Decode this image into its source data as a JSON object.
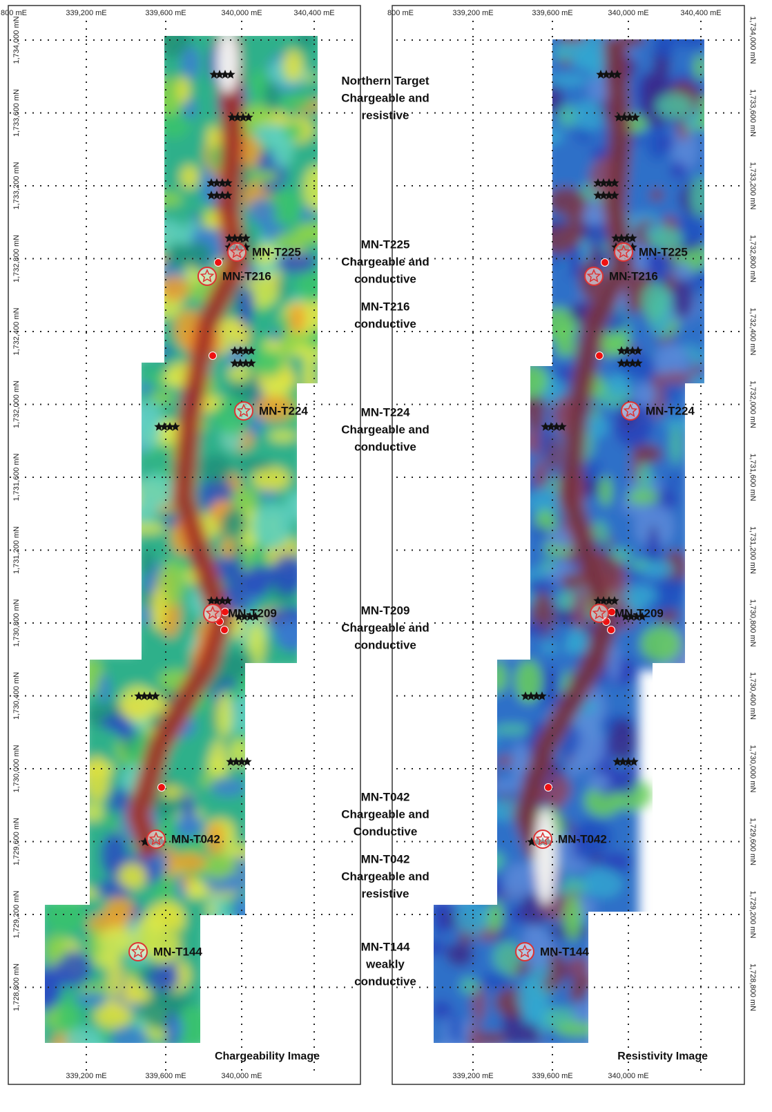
{
  "panels": [
    {
      "title": "Chargeability Image",
      "eastings_top": [
        "800 mE",
        "339,200 mE",
        "339,600 mE",
        "340,000 mE",
        "340,400 mE"
      ],
      "eastings_bottom": [
        "339,200 mE",
        "339,600 mE",
        "340,000 mE"
      ],
      "northings": [
        "1,734,000 mN",
        "1,733,600 mN",
        "1,733,200 mN",
        "1,732,800 mN",
        "1,732,400 mN",
        "1,732,000 mN",
        "1,731,600 mN",
        "1,731,200 mN",
        "1,730,800 mN",
        "1,730,400 mN",
        "1,730,000 mN",
        "1,729,600 mN",
        "1,729,200 mN",
        "1,728,800 mN"
      ],
      "targets": [
        "MN-T225",
        "MN-T216",
        "MN-T224",
        "MN-T209",
        "MN-T042",
        "MN-T144"
      ]
    },
    {
      "title": "Resistivity Image",
      "eastings_top": [
        "800 mE",
        "339,200 mE",
        "339,600 mE",
        "340,000 mE",
        "340,400 mE"
      ],
      "eastings_bottom": [
        "339,200 mE",
        "339,600 mE",
        "340,000 mE"
      ],
      "northings": [
        "1,734,000 mN",
        "1,733,600 mN",
        "1,733,200 mN",
        "1,732,800 mN",
        "1,732,400 mN",
        "1,732,000 mN",
        "1,731,600 mN",
        "1,731,200 mN",
        "1,730,800 mN",
        "1,730,400 mN",
        "1,730,000 mN",
        "1,729,600 mN",
        "1,729,200 mN",
        "1,728,800 mN"
      ],
      "targets": [
        "MN-T225",
        "MN-T216",
        "MN-T224",
        "MN-T209",
        "MN-T042",
        "MN-T144"
      ]
    }
  ],
  "annotations": [
    [
      "Northern Target",
      "Chargeable and",
      "resistive"
    ],
    [
      "MN-T225",
      "Chargeable and",
      "conductive"
    ],
    [
      "MN-T216",
      "conductive"
    ],
    [
      "MN-T224",
      "Chargeable and",
      "conductive"
    ],
    [
      "MN-T209",
      "Chargeable and",
      "conductive"
    ],
    [
      "MN-T042",
      "Chargeable and",
      "Conductive"
    ],
    [
      "MN-T042",
      "Chargeable and",
      "resistive"
    ],
    [
      "MN-T144",
      "weakly",
      "conductive"
    ]
  ]
}
